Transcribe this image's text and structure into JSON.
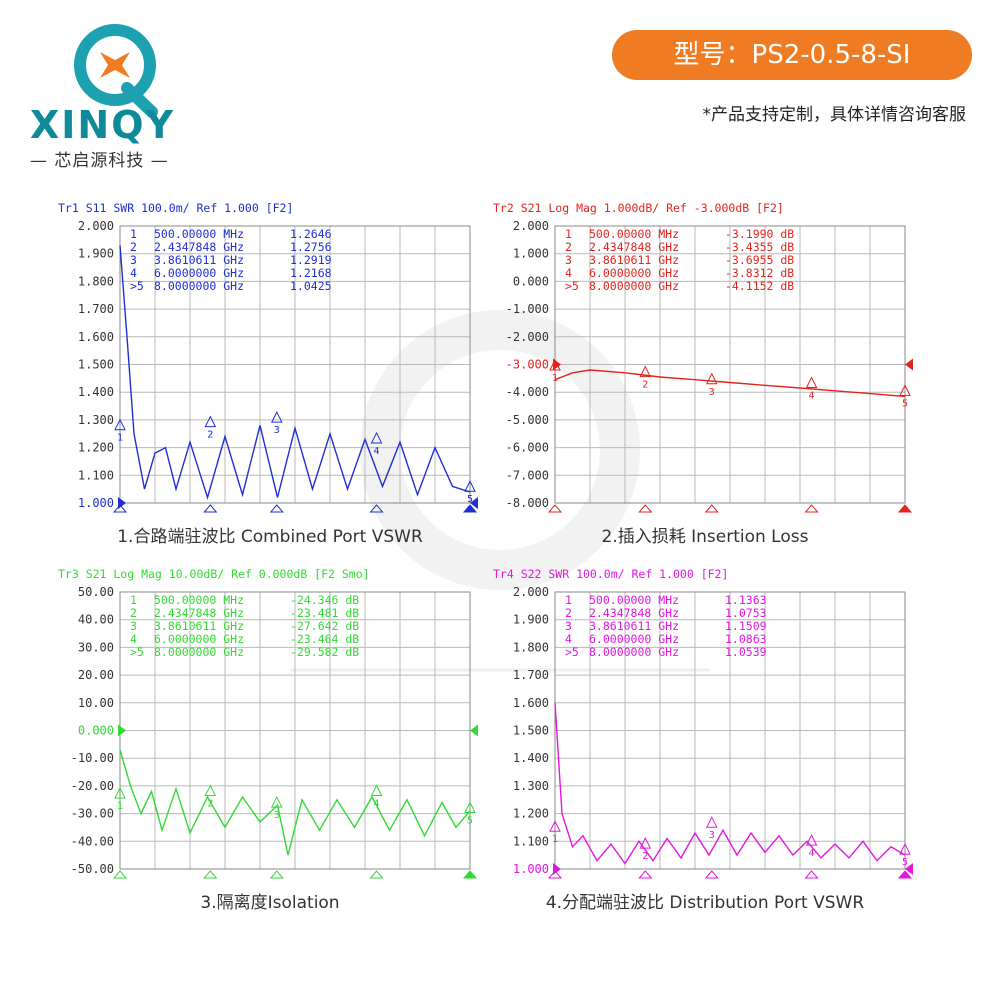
{
  "brand": {
    "name": "XINQY",
    "cn": "芯启源科技",
    "sub": "— 芯启源科技 —"
  },
  "header": {
    "model": "型号：PS2-0.5-8-SI",
    "note": "*产品支持定制，具体详情咨询客服"
  },
  "colors": {
    "accent": "#ef7c22",
    "brand": "#0e8a9a"
  },
  "chart_data": [
    {
      "id": "vswr-combined",
      "type": "line",
      "color": "#1f2fd6",
      "header": "Tr1 S11 SWR 100.0m/ Ref 1.000 [F2]",
      "caption": "1.合路端驻波比 Combined Port VSWR",
      "ylim": [
        1.0,
        2.0
      ],
      "yticks": [
        "2.000",
        "1.900",
        "1.800",
        "1.700",
        "1.600",
        "1.500",
        "1.400",
        "1.300",
        "1.200",
        "1.100",
        "1.000"
      ],
      "ref_index": 10,
      "markers": [
        {
          "n": "1",
          "freq": "500.00000 MHz",
          "val": "1.2646",
          "x": 0.0,
          "y": 1.2646
        },
        {
          "n": "2",
          "freq": "2.4347848 GHz",
          "val": "1.2756",
          "x": 0.258,
          "y": 1.2756
        },
        {
          "n": "3",
          "freq": "3.8610611 GHz",
          "val": "1.2919",
          "x": 0.448,
          "y": 1.2919
        },
        {
          "n": "4",
          "freq": "6.0000000 GHz",
          "val": "1.2168",
          "x": 0.733,
          "y": 1.2168
        },
        {
          "n": ">5",
          "freq": "8.0000000 GHz",
          "val": "1.0425",
          "x": 1.0,
          "y": 1.0425
        }
      ],
      "series": [
        {
          "values": [
            [
              0,
              1.93
            ],
            [
              0.02,
              1.6
            ],
            [
              0.04,
              1.25
            ],
            [
              0.07,
              1.05
            ],
            [
              0.1,
              1.18
            ],
            [
              0.13,
              1.2
            ],
            [
              0.16,
              1.05
            ],
            [
              0.2,
              1.22
            ],
            [
              0.25,
              1.02
            ],
            [
              0.3,
              1.24
            ],
            [
              0.35,
              1.03
            ],
            [
              0.4,
              1.28
            ],
            [
              0.45,
              1.02
            ],
            [
              0.5,
              1.27
            ],
            [
              0.55,
              1.05
            ],
            [
              0.6,
              1.25
            ],
            [
              0.65,
              1.05
            ],
            [
              0.7,
              1.23
            ],
            [
              0.75,
              1.06
            ],
            [
              0.8,
              1.22
            ],
            [
              0.85,
              1.03
            ],
            [
              0.9,
              1.2
            ],
            [
              0.95,
              1.06
            ],
            [
              1.0,
              1.04
            ]
          ]
        }
      ]
    },
    {
      "id": "insertion-loss",
      "type": "line",
      "color": "#e3241e",
      "header": "Tr2 S21 Log Mag 1.000dB/ Ref -3.000dB [F2]",
      "caption": "2.插入损耗 Insertion Loss",
      "ylim": [
        -8.0,
        2.0
      ],
      "yticks": [
        "2.000",
        "1.000",
        "0.000",
        "-1.000",
        "-2.000",
        "-3.000",
        "-4.000",
        "-5.000",
        "-6.000",
        "-7.000",
        "-8.000"
      ],
      "ref_index": 5,
      "markers": [
        {
          "n": "1",
          "freq": "500.00000 MHz",
          "val": "-3.1990 dB",
          "x": 0.0,
          "y": -3.199
        },
        {
          "n": "2",
          "freq": "2.4347848 GHz",
          "val": "-3.4355 dB",
          "x": 0.258,
          "y": -3.4355
        },
        {
          "n": "3",
          "freq": "3.8610611 GHz",
          "val": "-3.6955 dB",
          "x": 0.448,
          "y": -3.6955
        },
        {
          "n": "4",
          "freq": "6.0000000 GHz",
          "val": "-3.8312 dB",
          "x": 0.733,
          "y": -3.8312
        },
        {
          "n": ">5",
          "freq": "8.0000000 GHz",
          "val": "-4.1152 dB",
          "x": 1.0,
          "y": -4.1152
        }
      ],
      "series": [
        {
          "values": [
            [
              0,
              -3.55
            ],
            [
              0.05,
              -3.3
            ],
            [
              0.1,
              -3.2
            ],
            [
              0.2,
              -3.3
            ],
            [
              0.3,
              -3.45
            ],
            [
              0.4,
              -3.55
            ],
            [
              0.5,
              -3.65
            ],
            [
              0.6,
              -3.75
            ],
            [
              0.7,
              -3.85
            ],
            [
              0.8,
              -3.95
            ],
            [
              0.9,
              -4.05
            ],
            [
              1.0,
              -4.15
            ]
          ]
        }
      ]
    },
    {
      "id": "isolation",
      "type": "line",
      "color": "#33d933",
      "header": "Tr3 S21 Log Mag 10.00dB/ Ref 0.000dB [F2 Smo]",
      "caption": "3.隔离度Isolation",
      "ylim": [
        -50.0,
        50.0
      ],
      "yticks": [
        "50.00",
        "40.00",
        "30.00",
        "20.00",
        "10.00",
        "0.000",
        "-10.00",
        "-20.00",
        "-30.00",
        "-40.00",
        "-50.00"
      ],
      "ref_index": 5,
      "markers": [
        {
          "n": "1",
          "freq": "500.00000 MHz",
          "val": "-24.346 dB",
          "x": 0.0,
          "y": -24.346
        },
        {
          "n": "2",
          "freq": "2.4347848 GHz",
          "val": "-23.481 dB",
          "x": 0.258,
          "y": -23.481
        },
        {
          "n": "3",
          "freq": "3.8610611 GHz",
          "val": "-27.642 dB",
          "x": 0.448,
          "y": -27.642
        },
        {
          "n": "4",
          "freq": "6.0000000 GHz",
          "val": "-23.464 dB",
          "x": 0.733,
          "y": -23.464
        },
        {
          "n": ">5",
          "freq": "8.0000000 GHz",
          "val": "-29.582 dB",
          "x": 1.0,
          "y": -29.582
        }
      ],
      "series": [
        {
          "values": [
            [
              0,
              -7
            ],
            [
              0.03,
              -20
            ],
            [
              0.06,
              -30
            ],
            [
              0.09,
              -22
            ],
            [
              0.12,
              -36
            ],
            [
              0.16,
              -21
            ],
            [
              0.2,
              -37
            ],
            [
              0.25,
              -24
            ],
            [
              0.3,
              -35
            ],
            [
              0.35,
              -24
            ],
            [
              0.4,
              -33
            ],
            [
              0.45,
              -27
            ],
            [
              0.48,
              -45
            ],
            [
              0.52,
              -25
            ],
            [
              0.57,
              -36
            ],
            [
              0.62,
              -25
            ],
            [
              0.67,
              -35
            ],
            [
              0.72,
              -24
            ],
            [
              0.77,
              -36
            ],
            [
              0.82,
              -25
            ],
            [
              0.87,
              -38
            ],
            [
              0.92,
              -26
            ],
            [
              0.96,
              -35
            ],
            [
              1.0,
              -29
            ]
          ]
        }
      ]
    },
    {
      "id": "vswr-distribution",
      "type": "line",
      "color": "#e018e0",
      "header": "Tr4 S22 SWR 100.0m/ Ref 1.000 [F2]",
      "caption": "4.分配端驻波比 Distribution Port VSWR",
      "ylim": [
        1.0,
        2.0
      ],
      "yticks": [
        "2.000",
        "1.900",
        "1.800",
        "1.700",
        "1.600",
        "1.500",
        "1.400",
        "1.300",
        "1.200",
        "1.100",
        "1.000"
      ],
      "ref_index": 10,
      "markers": [
        {
          "n": "1",
          "freq": "500.00000 MHz",
          "val": "1.1363",
          "x": 0.0,
          "y": 1.1363
        },
        {
          "n": "2",
          "freq": "2.4347848 GHz",
          "val": "1.0753",
          "x": 0.258,
          "y": 1.0753
        },
        {
          "n": "3",
          "freq": "3.8610611 GHz",
          "val": "1.1509",
          "x": 0.448,
          "y": 1.1509
        },
        {
          "n": "4",
          "freq": "6.0000000 GHz",
          "val": "1.0863",
          "x": 0.733,
          "y": 1.0863
        },
        {
          "n": ">5",
          "freq": "8.0000000 GHz",
          "val": "1.0539",
          "x": 1.0,
          "y": 1.0539
        }
      ],
      "series": [
        {
          "values": [
            [
              0,
              1.6
            ],
            [
              0.02,
              1.2
            ],
            [
              0.05,
              1.08
            ],
            [
              0.08,
              1.12
            ],
            [
              0.12,
              1.03
            ],
            [
              0.16,
              1.09
            ],
            [
              0.2,
              1.02
            ],
            [
              0.24,
              1.1
            ],
            [
              0.28,
              1.03
            ],
            [
              0.32,
              1.11
            ],
            [
              0.36,
              1.04
            ],
            [
              0.4,
              1.13
            ],
            [
              0.44,
              1.05
            ],
            [
              0.48,
              1.14
            ],
            [
              0.52,
              1.05
            ],
            [
              0.56,
              1.13
            ],
            [
              0.6,
              1.06
            ],
            [
              0.64,
              1.12
            ],
            [
              0.68,
              1.05
            ],
            [
              0.72,
              1.1
            ],
            [
              0.76,
              1.04
            ],
            [
              0.8,
              1.09
            ],
            [
              0.84,
              1.04
            ],
            [
              0.88,
              1.1
            ],
            [
              0.92,
              1.03
            ],
            [
              0.96,
              1.08
            ],
            [
              1.0,
              1.05
            ]
          ]
        }
      ]
    }
  ]
}
